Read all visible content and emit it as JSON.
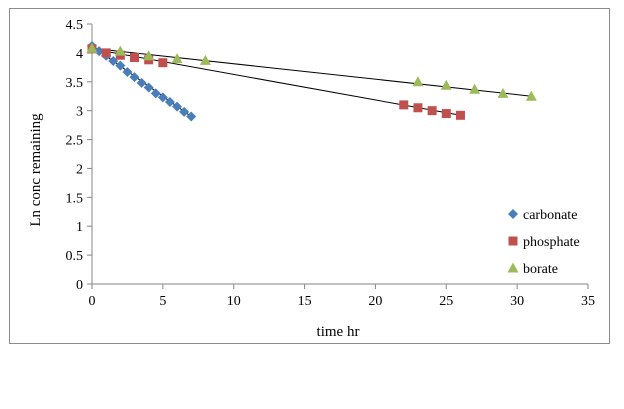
{
  "chart_data": {
    "type": "scatter",
    "title": "",
    "xlabel": "time hr",
    "ylabel": "Ln conc remaining",
    "xlim": [
      0,
      35
    ],
    "ylim": [
      0,
      4.5
    ],
    "xticks": [
      0,
      5,
      10,
      15,
      20,
      25,
      30,
      35
    ],
    "yticks": [
      0,
      0.5,
      1,
      1.5,
      2,
      2.5,
      3,
      3.5,
      4,
      4.5
    ],
    "xtick_labels": [
      "0",
      "5",
      "10",
      "15",
      "20",
      "25",
      "30",
      "35"
    ],
    "ytick_labels": [
      "0",
      "0.5",
      "1",
      "1.5",
      "2",
      "2.5",
      "3",
      "3.5",
      "4",
      "4.5"
    ],
    "grid": false,
    "legend_position": "right",
    "series": [
      {
        "name": "carbonate",
        "marker": "diamond",
        "color": "#4a7ebb",
        "x": [
          0,
          0.5,
          1,
          1.5,
          2,
          2.5,
          3,
          3.5,
          4,
          4.5,
          5,
          5.5,
          6,
          6.5,
          7
        ],
        "y": [
          4.12,
          4.03,
          3.95,
          3.86,
          3.78,
          3.67,
          3.58,
          3.48,
          3.4,
          3.3,
          3.23,
          3.15,
          3.07,
          2.98,
          2.9
        ],
        "trendline": [
          [
            0,
            4.12
          ],
          [
            7,
            2.9
          ]
        ]
      },
      {
        "name": "phosphate",
        "marker": "square",
        "color": "#c0504d",
        "x": [
          0,
          1,
          2,
          3,
          4,
          5,
          22,
          23,
          24,
          25,
          26
        ],
        "y": [
          4.07,
          4.0,
          3.96,
          3.92,
          3.88,
          3.83,
          3.1,
          3.05,
          3.0,
          2.95,
          2.92
        ],
        "trendline": [
          [
            0,
            4.07
          ],
          [
            26,
            2.92
          ]
        ]
      },
      {
        "name": "borate",
        "marker": "triangle",
        "color": "#9bbb59",
        "x": [
          0,
          2,
          4,
          6,
          8,
          23,
          25,
          27,
          29,
          31
        ],
        "y": [
          4.08,
          4.03,
          3.95,
          3.9,
          3.87,
          3.5,
          3.44,
          3.37,
          3.3,
          3.25
        ],
        "trendline": [
          [
            0,
            4.08
          ],
          [
            31,
            3.25
          ]
        ]
      }
    ]
  }
}
